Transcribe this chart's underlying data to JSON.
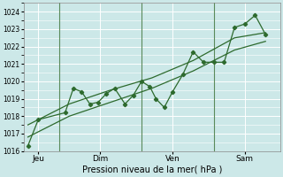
{
  "xlabel": "Pression niveau de la mer( hPa )",
  "ylim": [
    1016,
    1024.5
  ],
  "yticks": [
    1016,
    1017,
    1018,
    1019,
    1020,
    1021,
    1022,
    1023,
    1024
  ],
  "bg_color": "#cce8e8",
  "line_color": "#2d6a2d",
  "grid_color": "#ffffff",
  "xtick_labels": [
    "Jeu",
    "Dim",
    "Ven",
    "Sam"
  ],
  "xtick_positions": [
    0.5,
    3.5,
    7.0,
    10.5
  ],
  "vline_positions": [
    1.5,
    5.5,
    9.0
  ],
  "xlim": [
    -0.2,
    12.2
  ],
  "line1_x": [
    0.0,
    0.5,
    1.8,
    2.2,
    2.6,
    3.0,
    3.4,
    3.8,
    4.2,
    4.7,
    5.1,
    5.5,
    5.9,
    6.2,
    6.6,
    7.0,
    7.5,
    8.0,
    8.5,
    9.0,
    9.5,
    10.0,
    10.5,
    11.0,
    11.5
  ],
  "line1_y": [
    1016.3,
    1017.8,
    1018.2,
    1019.6,
    1019.4,
    1018.7,
    1018.8,
    1019.3,
    1019.6,
    1018.7,
    1019.2,
    1020.0,
    1019.7,
    1019.0,
    1018.5,
    1019.4,
    1020.4,
    1021.7,
    1021.1,
    1021.1,
    1021.1,
    1023.1,
    1023.3,
    1023.8,
    1022.7
  ],
  "line2_x": [
    0.0,
    2.0,
    4.0,
    6.0,
    8.0,
    10.0,
    11.5
  ],
  "line2_y": [
    1017.5,
    1018.7,
    1019.5,
    1020.2,
    1021.2,
    1022.5,
    1022.8
  ],
  "line3_x": [
    0.0,
    2.0,
    4.0,
    6.0,
    8.0,
    10.0,
    11.5
  ],
  "line3_y": [
    1016.8,
    1018.0,
    1018.8,
    1019.6,
    1020.6,
    1021.8,
    1022.3
  ],
  "figsize": [
    3.2,
    2.0
  ],
  "dpi": 100
}
